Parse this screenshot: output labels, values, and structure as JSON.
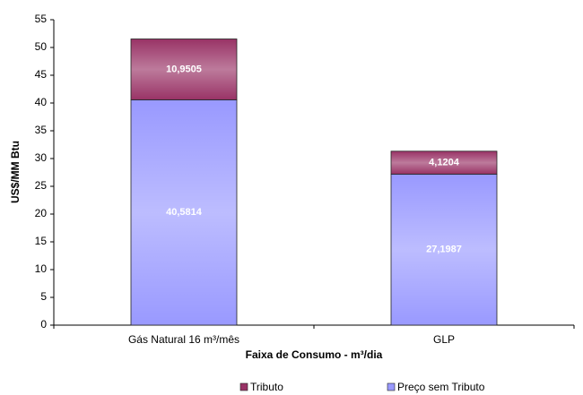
{
  "chart_data": {
    "type": "stacked_bar",
    "x_label": "Faixa de Consumo - m³/dia",
    "y_label": "US$/MM Btu",
    "categories": [
      "Gás Natural 16 m³/mês",
      "GLP"
    ],
    "series": [
      {
        "name": "Preço sem Tributo",
        "color": "#9999ff",
        "values": [
          40.5814,
          27.1987
        ],
        "value_labels": [
          "40,5814",
          "27,1987"
        ]
      },
      {
        "name": "Tributo",
        "color": "#993366",
        "values": [
          10.9505,
          4.1204
        ],
        "value_labels": [
          "10,9505",
          "4,1204"
        ]
      }
    ],
    "ylim": [
      0,
      55
    ],
    "yticks": [
      0,
      5,
      10,
      15,
      20,
      25,
      30,
      35,
      40,
      45,
      50,
      55
    ],
    "legend": "bottom"
  }
}
